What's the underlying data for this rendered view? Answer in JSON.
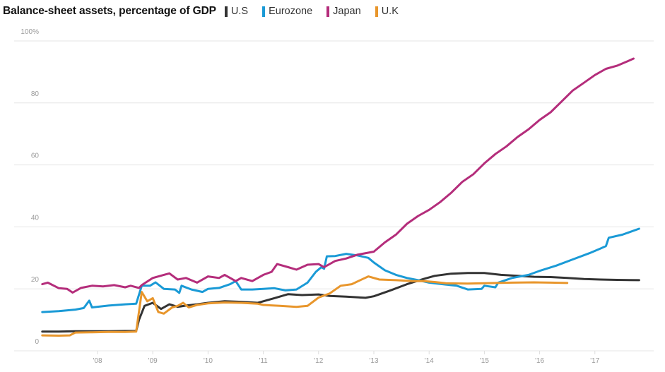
{
  "chart_data": {
    "type": "line",
    "title": "Balance-sheet assets, percentage of GDP",
    "xlabel": "",
    "ylabel": "",
    "ylim": [
      0,
      100
    ],
    "xlim": [
      2007.0,
      2017.9
    ],
    "grid": true,
    "legend_position": "top, inline with title",
    "y_ticks": [
      {
        "value": 0,
        "label": "0"
      },
      {
        "value": 20,
        "label": "20"
      },
      {
        "value": 40,
        "label": "40"
      },
      {
        "value": 60,
        "label": "60"
      },
      {
        "value": 80,
        "label": "80"
      },
      {
        "value": 100,
        "label": "100%"
      }
    ],
    "x_ticks": [
      {
        "value": 2008,
        "label": "'08"
      },
      {
        "value": 2009,
        "label": "'09"
      },
      {
        "value": 2010,
        "label": "'10"
      },
      {
        "value": 2011,
        "label": "'11"
      },
      {
        "value": 2012,
        "label": "'12"
      },
      {
        "value": 2013,
        "label": "'13"
      },
      {
        "value": 2014,
        "label": "'14"
      },
      {
        "value": 2015,
        "label": "'15"
      },
      {
        "value": 2016,
        "label": "'16"
      },
      {
        "value": 2017,
        "label": "'17"
      }
    ],
    "series": [
      {
        "name": "U.S",
        "color": "#333333",
        "points": [
          [
            2007.0,
            6.2
          ],
          [
            2007.3,
            6.2
          ],
          [
            2007.6,
            6.3
          ],
          [
            2007.9,
            6.3
          ],
          [
            2008.2,
            6.3
          ],
          [
            2008.5,
            6.4
          ],
          [
            2008.7,
            6.4
          ],
          [
            2008.75,
            10
          ],
          [
            2008.85,
            14.5
          ],
          [
            2009.0,
            15.5
          ],
          [
            2009.15,
            13.5
          ],
          [
            2009.3,
            15
          ],
          [
            2009.45,
            14.2
          ],
          [
            2009.6,
            14.6
          ],
          [
            2009.8,
            15.0
          ],
          [
            2010.0,
            15.5
          ],
          [
            2010.3,
            16.0
          ],
          [
            2010.6,
            15.8
          ],
          [
            2010.9,
            15.5
          ],
          [
            2011.0,
            16.0
          ],
          [
            2011.2,
            17.0
          ],
          [
            2011.45,
            18.3
          ],
          [
            2011.7,
            18.0
          ],
          [
            2012.0,
            18.2
          ],
          [
            2012.2,
            17.7
          ],
          [
            2012.5,
            17.5
          ],
          [
            2012.85,
            17.1
          ],
          [
            2013.0,
            17.6
          ],
          [
            2013.3,
            19.5
          ],
          [
            2013.6,
            21.5
          ],
          [
            2013.9,
            23.2
          ],
          [
            2014.1,
            24.2
          ],
          [
            2014.4,
            24.9
          ],
          [
            2014.7,
            25.1
          ],
          [
            2015.0,
            25.1
          ],
          [
            2015.3,
            24.5
          ],
          [
            2015.6,
            24.2
          ],
          [
            2015.9,
            23.9
          ],
          [
            2016.2,
            23.8
          ],
          [
            2016.5,
            23.5
          ],
          [
            2016.8,
            23.2
          ],
          [
            2017.1,
            23.0
          ],
          [
            2017.4,
            22.9
          ],
          [
            2017.8,
            22.8
          ]
        ]
      },
      {
        "name": "Eurozone",
        "color": "#1a9ad6",
        "points": [
          [
            2007.0,
            12.5
          ],
          [
            2007.3,
            12.8
          ],
          [
            2007.6,
            13.3
          ],
          [
            2007.75,
            13.8
          ],
          [
            2007.85,
            16.2
          ],
          [
            2007.9,
            14.0
          ],
          [
            2008.2,
            14.6
          ],
          [
            2008.5,
            15.0
          ],
          [
            2008.7,
            15.2
          ],
          [
            2008.8,
            21.0
          ],
          [
            2008.95,
            21.0
          ],
          [
            2009.05,
            22.1
          ],
          [
            2009.2,
            20.0
          ],
          [
            2009.4,
            19.8
          ],
          [
            2009.48,
            18.7
          ],
          [
            2009.52,
            21.0
          ],
          [
            2009.7,
            19.8
          ],
          [
            2009.9,
            19.0
          ],
          [
            2010.0,
            20.0
          ],
          [
            2010.2,
            20.3
          ],
          [
            2010.4,
            21.5
          ],
          [
            2010.5,
            22.5
          ],
          [
            2010.6,
            19.8
          ],
          [
            2010.8,
            19.8
          ],
          [
            2011.0,
            20.0
          ],
          [
            2011.2,
            20.2
          ],
          [
            2011.4,
            19.5
          ],
          [
            2011.6,
            19.8
          ],
          [
            2011.8,
            22.0
          ],
          [
            2011.95,
            25.5
          ],
          [
            2012.05,
            27.0
          ],
          [
            2012.1,
            26.5
          ],
          [
            2012.15,
            30.5
          ],
          [
            2012.3,
            30.6
          ],
          [
            2012.5,
            31.3
          ],
          [
            2012.7,
            30.8
          ],
          [
            2012.9,
            30.0
          ],
          [
            2013.0,
            28.5
          ],
          [
            2013.2,
            26.0
          ],
          [
            2013.4,
            24.5
          ],
          [
            2013.6,
            23.5
          ],
          [
            2013.8,
            22.8
          ],
          [
            2014.0,
            22.0
          ],
          [
            2014.3,
            21.4
          ],
          [
            2014.5,
            21.0
          ],
          [
            2014.7,
            19.8
          ],
          [
            2014.95,
            20.0
          ],
          [
            2015.0,
            21.0
          ],
          [
            2015.2,
            20.5
          ],
          [
            2015.25,
            22.0
          ],
          [
            2015.5,
            23.5
          ],
          [
            2015.8,
            24.5
          ],
          [
            2016.0,
            25.8
          ],
          [
            2016.3,
            27.5
          ],
          [
            2016.6,
            29.5
          ],
          [
            2016.9,
            31.5
          ],
          [
            2017.1,
            33.0
          ],
          [
            2017.2,
            33.8
          ],
          [
            2017.25,
            36.5
          ],
          [
            2017.5,
            37.5
          ],
          [
            2017.8,
            39.4
          ]
        ]
      },
      {
        "name": "Japan",
        "color": "#b42d7b",
        "points": [
          [
            2007.0,
            21.5
          ],
          [
            2007.1,
            22.0
          ],
          [
            2007.3,
            20.2
          ],
          [
            2007.45,
            20.0
          ],
          [
            2007.55,
            18.8
          ],
          [
            2007.7,
            20.3
          ],
          [
            2007.9,
            21.0
          ],
          [
            2008.1,
            20.8
          ],
          [
            2008.3,
            21.2
          ],
          [
            2008.5,
            20.5
          ],
          [
            2008.6,
            21.0
          ],
          [
            2008.75,
            20.3
          ],
          [
            2008.8,
            21.2
          ],
          [
            2009.0,
            23.5
          ],
          [
            2009.2,
            24.5
          ],
          [
            2009.3,
            25.0
          ],
          [
            2009.45,
            23.0
          ],
          [
            2009.6,
            23.5
          ],
          [
            2009.8,
            22.0
          ],
          [
            2010.0,
            24.0
          ],
          [
            2010.2,
            23.5
          ],
          [
            2010.3,
            24.5
          ],
          [
            2010.5,
            22.5
          ],
          [
            2010.6,
            23.5
          ],
          [
            2010.8,
            22.5
          ],
          [
            2011.0,
            24.5
          ],
          [
            2011.15,
            25.5
          ],
          [
            2011.25,
            28.0
          ],
          [
            2011.45,
            27.0
          ],
          [
            2011.6,
            26.2
          ],
          [
            2011.8,
            27.8
          ],
          [
            2012.0,
            28.0
          ],
          [
            2012.1,
            27.0
          ],
          [
            2012.3,
            29.0
          ],
          [
            2012.5,
            29.8
          ],
          [
            2012.7,
            31.0
          ],
          [
            2013.0,
            32.0
          ],
          [
            2013.2,
            35.0
          ],
          [
            2013.4,
            37.5
          ],
          [
            2013.6,
            41.0
          ],
          [
            2013.8,
            43.5
          ],
          [
            2014.0,
            45.5
          ],
          [
            2014.2,
            48.0
          ],
          [
            2014.4,
            51.0
          ],
          [
            2014.6,
            54.5
          ],
          [
            2014.8,
            57.0
          ],
          [
            2015.0,
            60.5
          ],
          [
            2015.2,
            63.5
          ],
          [
            2015.4,
            66.0
          ],
          [
            2015.6,
            69.0
          ],
          [
            2015.8,
            71.5
          ],
          [
            2016.0,
            74.5
          ],
          [
            2016.2,
            77.0
          ],
          [
            2016.4,
            80.5
          ],
          [
            2016.6,
            84.0
          ],
          [
            2016.8,
            86.5
          ],
          [
            2017.0,
            89.0
          ],
          [
            2017.2,
            91.0
          ],
          [
            2017.4,
            92.0
          ],
          [
            2017.6,
            93.5
          ],
          [
            2017.7,
            94.3
          ]
        ]
      },
      {
        "name": "U.K",
        "color": "#e8962c",
        "points": [
          [
            2007.0,
            5.0
          ],
          [
            2007.3,
            4.9
          ],
          [
            2007.5,
            5.0
          ],
          [
            2007.6,
            5.9
          ],
          [
            2007.9,
            6.0
          ],
          [
            2008.2,
            6.1
          ],
          [
            2008.5,
            6.1
          ],
          [
            2008.7,
            6.2
          ],
          [
            2008.8,
            19.0
          ],
          [
            2008.9,
            16.0
          ],
          [
            2009.0,
            17.0
          ],
          [
            2009.1,
            12.5
          ],
          [
            2009.2,
            12.0
          ],
          [
            2009.35,
            14.0
          ],
          [
            2009.45,
            14.5
          ],
          [
            2009.55,
            15.5
          ],
          [
            2009.65,
            14.0
          ],
          [
            2009.8,
            14.8
          ],
          [
            2010.0,
            15.3
          ],
          [
            2010.3,
            15.6
          ],
          [
            2010.6,
            15.5
          ],
          [
            2010.9,
            15.2
          ],
          [
            2011.0,
            14.8
          ],
          [
            2011.3,
            14.5
          ],
          [
            2011.6,
            14.2
          ],
          [
            2011.8,
            14.5
          ],
          [
            2012.0,
            17.2
          ],
          [
            2012.2,
            18.5
          ],
          [
            2012.4,
            21.0
          ],
          [
            2012.6,
            21.5
          ],
          [
            2012.8,
            23.2
          ],
          [
            2012.9,
            24.0
          ],
          [
            2013.1,
            23.0
          ],
          [
            2013.4,
            22.8
          ],
          [
            2013.7,
            22.5
          ],
          [
            2013.9,
            22.5
          ],
          [
            2014.1,
            22.2
          ],
          [
            2014.3,
            21.8
          ],
          [
            2014.7,
            21.7
          ],
          [
            2015.0,
            21.8
          ],
          [
            2015.5,
            22.0
          ],
          [
            2015.9,
            22.1
          ],
          [
            2016.2,
            22.0
          ],
          [
            2016.5,
            21.9
          ]
        ]
      }
    ]
  }
}
